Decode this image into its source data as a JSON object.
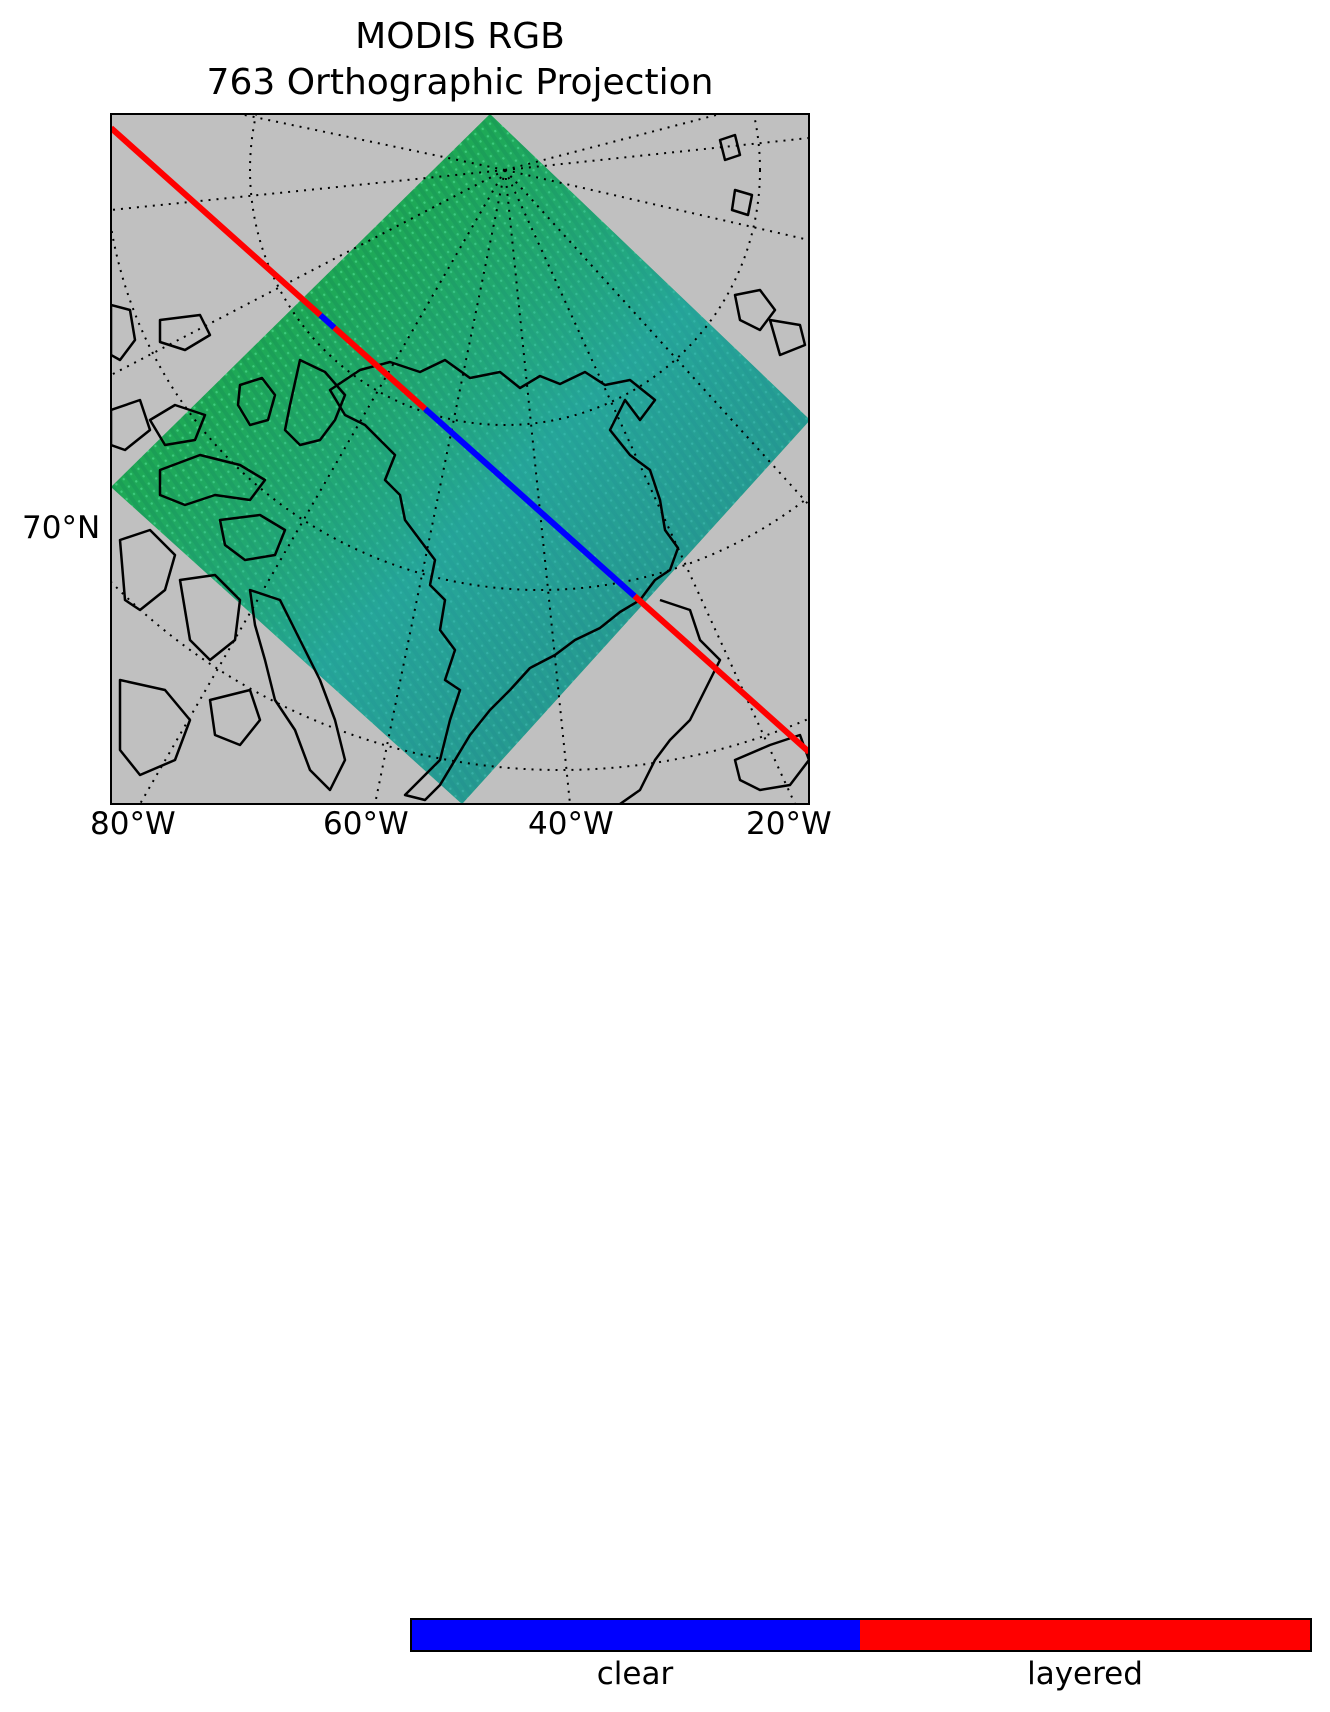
{
  "figure": {
    "title_line1": "MODIS RGB",
    "title_line2": "763 Orthographic Projection"
  },
  "map": {
    "projection": "Orthographic",
    "background_color": "#c0c0c0",
    "scene_color_primary": "#1aa83c",
    "scene_color_secondary": "#2a9fb0",
    "coastline_color": "#000000",
    "graticule_style": "dotted",
    "latitude_labels": [
      "70°N"
    ],
    "longitude_labels": [
      "80°W",
      "60°W",
      "40°W",
      "20°W"
    ],
    "track": {
      "segments": [
        {
          "class": "layered",
          "color": "#ff0000"
        },
        {
          "class": "clear",
          "color": "#0000ff"
        },
        {
          "class": "layered",
          "color": "#ff0000"
        },
        {
          "class": "clear",
          "color": "#0000ff"
        },
        {
          "class": "layered",
          "color": "#ff0000"
        }
      ]
    }
  },
  "colorbar": {
    "categories": [
      {
        "label": "clear",
        "color": "#0000ff"
      },
      {
        "label": "layered",
        "color": "#ff0000"
      }
    ]
  }
}
